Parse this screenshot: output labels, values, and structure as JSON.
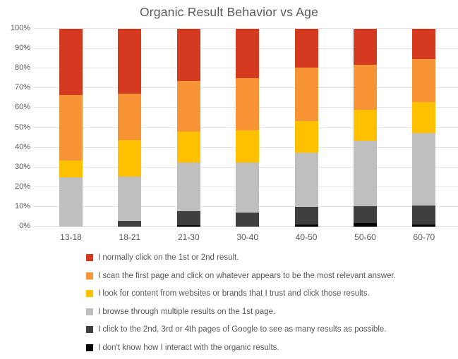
{
  "chart": {
    "title": "Organic Result Behavior vs Age"
  },
  "chart_data": {
    "type": "bar",
    "variant": "100%-stacked-column",
    "title": "Organic Result Behavior vs Age",
    "xlabel": "",
    "ylabel": "",
    "ylim": [
      0,
      100
    ],
    "grid": true,
    "legend_position": "bottom-left",
    "stack_note": "last series renders at bottom of each column, first series at top",
    "y_ticks": [
      "0%",
      "10%",
      "20%",
      "30%",
      "40%",
      "50%",
      "60%",
      "70%",
      "80%",
      "90%",
      "100%"
    ],
    "categories": [
      "13-18",
      "18-21",
      "21-30",
      "30-40",
      "40-50",
      "50-60",
      "60-70"
    ],
    "series": [
      {
        "name": "I normally click on the 1st or 2nd result.",
        "color": "#d43a20",
        "values": [
          33.3,
          32.9,
          26.5,
          24.8,
          19.5,
          18.0,
          15.3
        ]
      },
      {
        "name": "I scan the first page and click on whatever appears to be the most relevant answer.",
        "color": "#f79435",
        "values": [
          33.4,
          23.4,
          25.3,
          26.4,
          27.1,
          23.0,
          21.7
        ]
      },
      {
        "name": "I look for content from websites or brands that I trust and click those results.",
        "color": "#ffc000",
        "values": [
          8.3,
          18.4,
          15.9,
          16.3,
          16.1,
          15.6,
          15.8
        ]
      },
      {
        "name": "I browse through multiple results on the 1st page.",
        "color": "#bfbfbf",
        "values": [
          25.0,
          22.6,
          24.4,
          25.5,
          27.3,
          33.1,
          36.4
        ]
      },
      {
        "name": "I click to the 2nd, 3rd or 4th pages of Google to see as many results as possible.",
        "color": "#3f3f3f",
        "values": [
          0,
          2.7,
          7.1,
          7.0,
          8.9,
          8.7,
          9.6
        ]
      },
      {
        "name": "I don't know how I interact with the organic results.",
        "color": "#000000",
        "values": [
          0,
          0,
          0.8,
          0,
          1.1,
          1.6,
          1.2
        ]
      }
    ]
  }
}
